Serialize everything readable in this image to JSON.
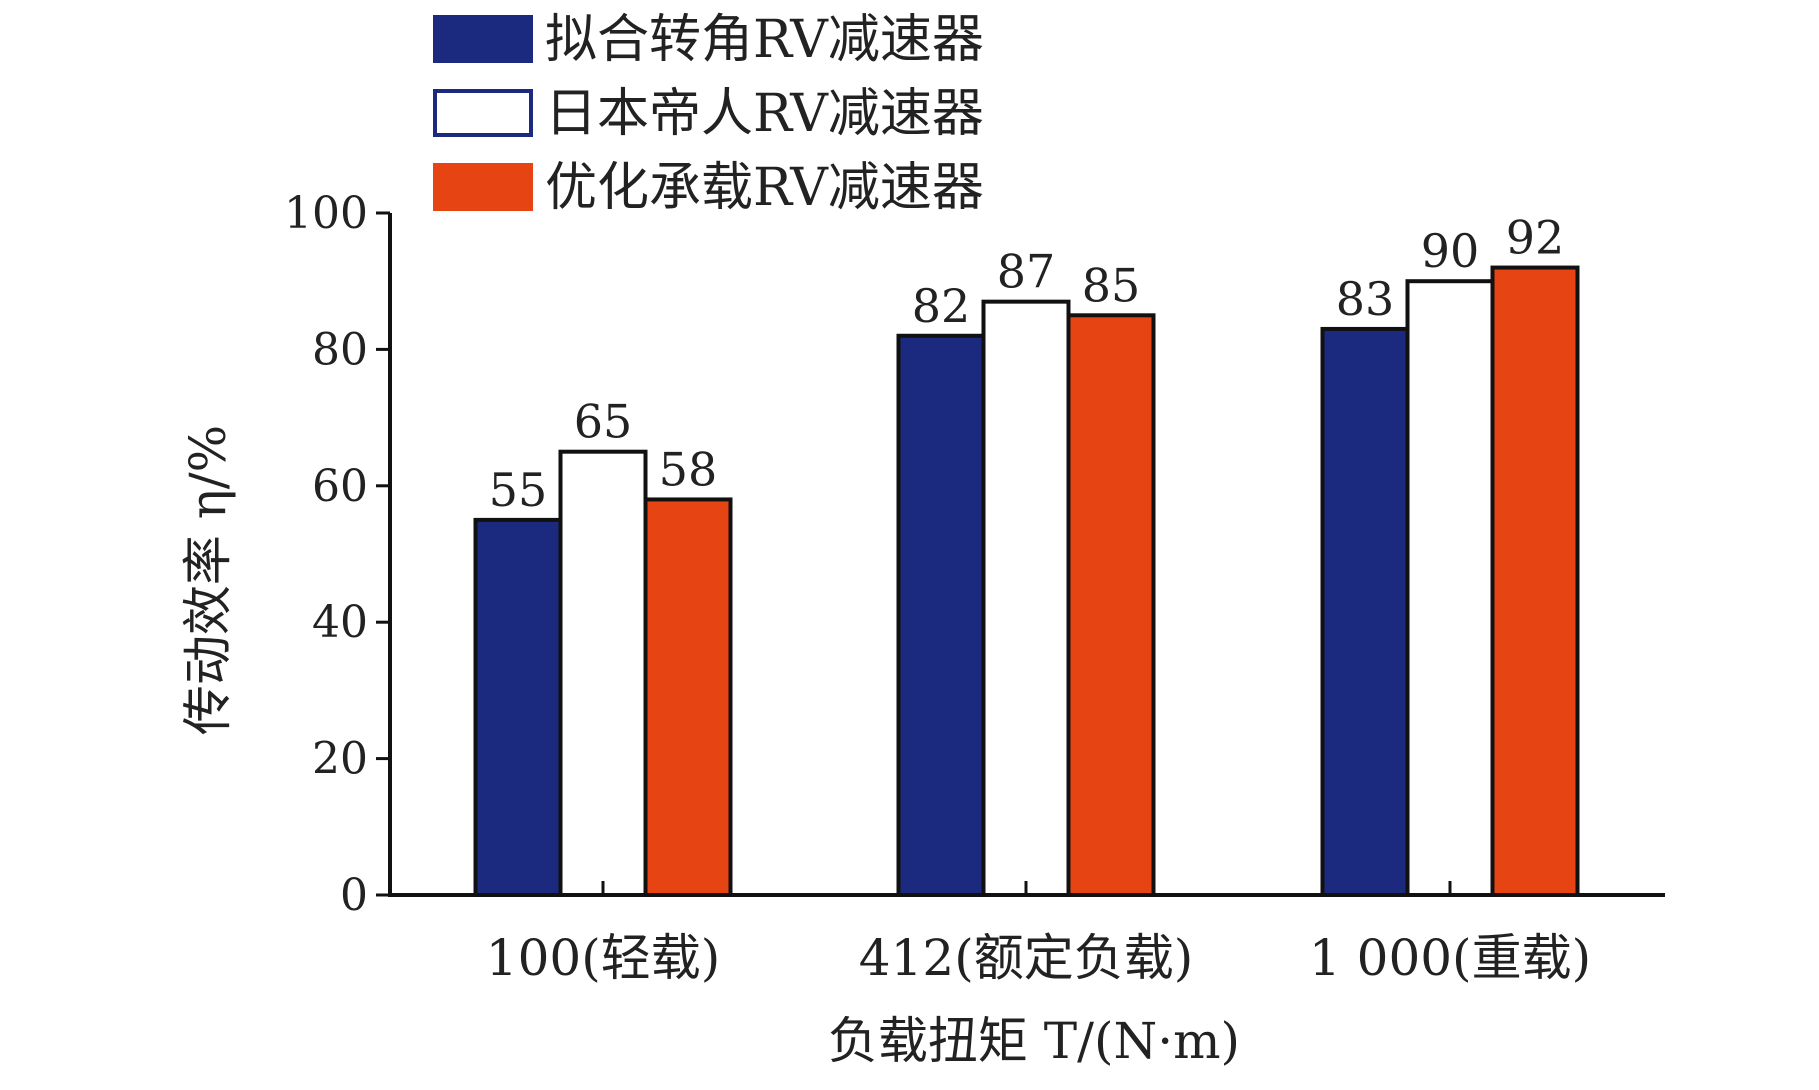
{
  "chart_data": {
    "type": "bar",
    "categories": [
      "100(轻载)",
      "412(额定负载)",
      "1 000(重载)"
    ],
    "series": [
      {
        "name": "拟合转角RV减速器",
        "values": [
          55,
          82,
          83
        ],
        "color": "#1b2a7e"
      },
      {
        "name": "日本帝人RV减速器",
        "values": [
          65,
          87,
          90
        ],
        "color": "#ffffff"
      },
      {
        "name": "优化承载RV减速器",
        "values": [
          58,
          85,
          92
        ],
        "color": "#e64513"
      }
    ],
    "xlabel": "负载扭矩 T/(N·m)",
    "ylabel": "传动效率 η/%",
    "ylim": [
      0,
      100
    ],
    "yticks": [
      0,
      20,
      40,
      60,
      80,
      100
    ],
    "legend_position": "top",
    "grid": false,
    "show_value_labels": true
  }
}
